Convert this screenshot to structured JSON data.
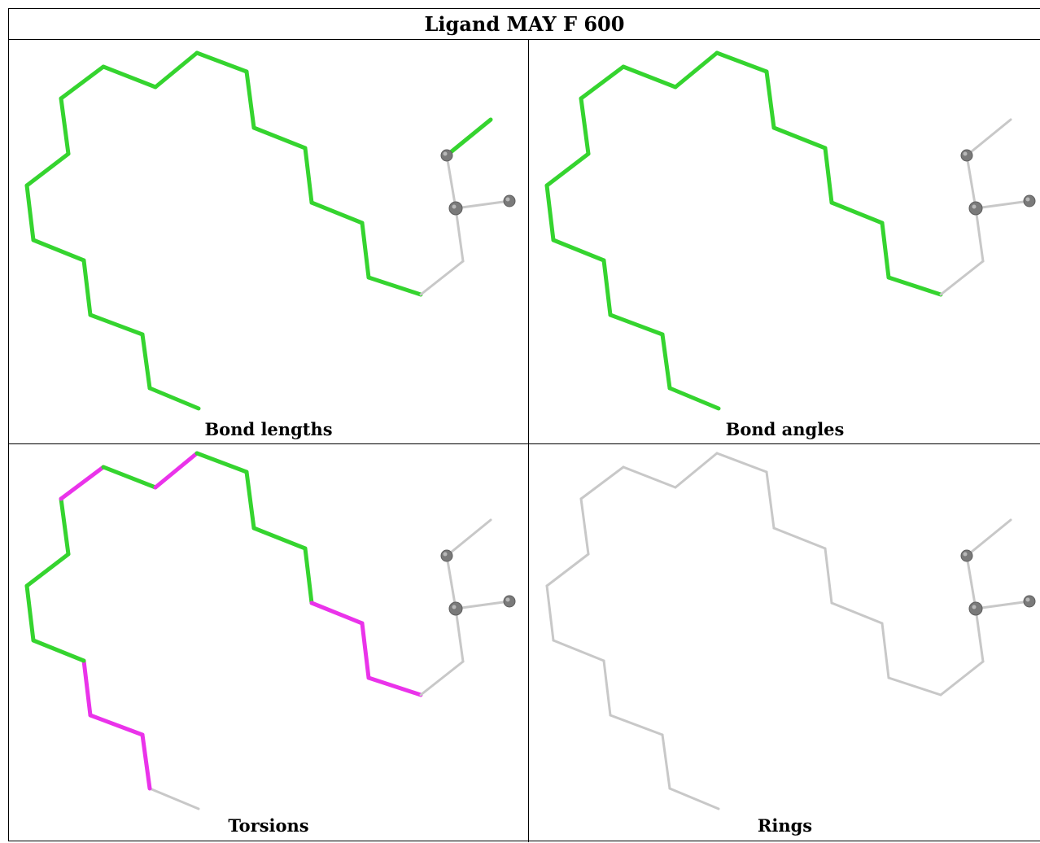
{
  "title": "Ligand MAY F 600",
  "colors": {
    "green": "#35d42f",
    "magenta": "#ea33ea",
    "grey": "#c8c8c8",
    "atom": "#7a7a7a"
  },
  "panels": [
    {
      "caption": "Bond lengths",
      "bond_colors": [
        "green",
        "green",
        "green",
        "green",
        "green",
        "green",
        "green",
        "green",
        "green",
        "green",
        "green",
        "green",
        "green",
        "green",
        "green",
        "green",
        "green",
        "green",
        "grey",
        "grey",
        "grey",
        "green"
      ]
    },
    {
      "caption": "Bond angles",
      "bond_colors": [
        "green",
        "green",
        "green",
        "green",
        "green",
        "green",
        "green",
        "green",
        "green",
        "green",
        "green",
        "green",
        "green",
        "green",
        "green",
        "green",
        "green",
        "green",
        "grey",
        "grey",
        "grey",
        "grey"
      ]
    },
    {
      "caption": "Torsions",
      "bond_colors": [
        "grey",
        "magenta",
        "magenta",
        "magenta",
        "green",
        "green",
        "green",
        "green",
        "magenta",
        "green",
        "magenta",
        "green",
        "green",
        "green",
        "green",
        "magenta",
        "magenta",
        "magenta",
        "grey",
        "grey",
        "grey",
        "grey"
      ]
    },
    {
      "caption": "Rings",
      "bond_colors": [
        "grey",
        "grey",
        "grey",
        "grey",
        "grey",
        "grey",
        "grey",
        "grey",
        "grey",
        "grey",
        "grey",
        "grey",
        "grey",
        "grey",
        "grey",
        "grey",
        "grey",
        "grey",
        "grey",
        "grey",
        "grey",
        "grey"
      ]
    }
  ]
}
